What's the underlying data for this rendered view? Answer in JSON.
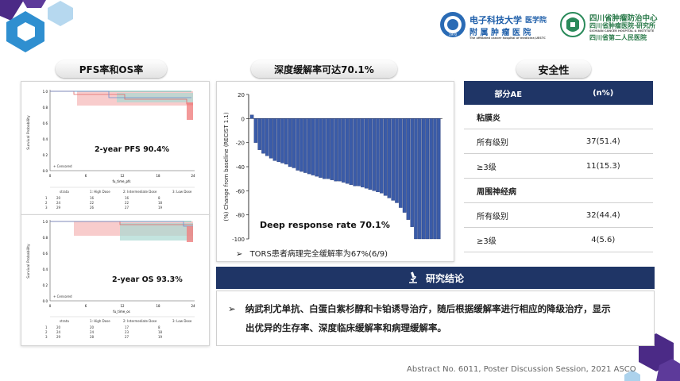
{
  "logos": {
    "uestc": {
      "line1": "电子科技大学",
      "suffix": "医学院",
      "line2": "附 属 肿 瘤 医 院",
      "subtitle": "The affiliated cancer hospital of medicine,UESTC",
      "seal_text": "1970"
    },
    "sichuan": {
      "line1": "四川省肿瘤医院·研究所",
      "line2": "四川省肿瘤防治中心",
      "line3": "四川省第二人民医院",
      "subtitle": "SICHUAN CANCER HOSPITAL & INSTITUTE"
    }
  },
  "headers": {
    "left": "PFS率和OS率",
    "middle": "深度缓解率可达70.1%",
    "right": "安全性"
  },
  "km_pfs": {
    "annotation": "2-year PFS 90.4%",
    "ylabel": "Survival Probability",
    "xlabel": "fu_time_pfs",
    "yticks": [
      "1.0",
      "0.8",
      "0.6",
      "0.4",
      "0.2",
      "0.0"
    ],
    "xticks": [
      "0",
      "6",
      "12",
      "18",
      "24"
    ],
    "censored": "+ Censored",
    "legend": [
      "strata",
      "1: High Dose",
      "2: Intermediate Dose",
      "3: Low Dose"
    ],
    "risk_rows": [
      [
        "1",
        "20",
        "16",
        "16",
        "8"
      ],
      [
        "2",
        "24",
        "22",
        "22",
        "18"
      ],
      [
        "3",
        "29",
        "26",
        "27",
        "19"
      ]
    ]
  },
  "km_os": {
    "annotation": "2-year OS 93.3%",
    "ylabel": "Survival Probability",
    "xlabel": "fu_time_os",
    "yticks": [
      "1.0",
      "0.8",
      "0.6",
      "0.4",
      "0.2",
      "0.0"
    ],
    "xticks": [
      "0",
      "6",
      "12",
      "18",
      "24"
    ],
    "censored": "+ Censored",
    "legend": [
      "strata",
      "1: High Dose",
      "2: Intermediate Dose",
      "3: Low Dose"
    ],
    "risk_rows": [
      [
        "1",
        "20",
        "20",
        "17",
        "8"
      ],
      [
        "2",
        "24",
        "24",
        "23",
        "18"
      ],
      [
        "3",
        "29",
        "28",
        "27",
        "19"
      ]
    ]
  },
  "chart_data": {
    "type": "bar",
    "title": "",
    "xlabel": "",
    "ylabel": "(%) Change from baseline (RECIST 1.1)",
    "ylim": [
      -100,
      20
    ],
    "yticks": [
      20,
      0,
      -20,
      -40,
      -60,
      -80,
      -100
    ],
    "annotation": "Deep response rate 70.1%",
    "bar_color": "#3a5ba8",
    "values": [
      3,
      -20,
      -26,
      -29,
      -31,
      -33,
      -35,
      -36,
      -37,
      -38,
      -40,
      -41,
      -43,
      -44,
      -45,
      -46,
      -47,
      -48,
      -49,
      -50,
      -50,
      -51,
      -52,
      -52,
      -53,
      -54,
      -55,
      -56,
      -56,
      -57,
      -58,
      -59,
      -60,
      -61,
      -62,
      -64,
      -66,
      -68,
      -70,
      -74,
      -78,
      -84,
      -90,
      -100,
      -100,
      -100,
      -100,
      -100,
      -100,
      -100
    ]
  },
  "tors_note": {
    "bullet": "➢",
    "text": "TORS患者病理完全缓解率为67%(6/9)"
  },
  "safety_table": {
    "headers": [
      "部分AE",
      "(n%)"
    ],
    "rows": [
      {
        "kind": "section",
        "label": "粘膜炎",
        "value": ""
      },
      {
        "kind": "row",
        "label": "所有级别",
        "value": "37(51.4)"
      },
      {
        "kind": "row",
        "label": "≥3级",
        "value": "11(15.3)"
      },
      {
        "kind": "section",
        "label": "周围神经病",
        "value": ""
      },
      {
        "kind": "row",
        "label": "所有级别",
        "value": "32(44.4)"
      },
      {
        "kind": "row",
        "label": "≥3级",
        "value": "4(5.6)"
      }
    ]
  },
  "conclusion": {
    "title": "研究结论",
    "bullet": "➢",
    "line1": "纳武利尤单抗、白蛋白紫杉醇和卡铂诱导治疗，随后根据缓解率进行相应的降级治疗，显示",
    "line2": "出优异的生存率、深度临床缓解率和病理缓解率。"
  },
  "footer": "Abstract No. 6011, Poster Discussion  Session, 2021 ASCO",
  "colors": {
    "navy": "#1f3566",
    "accent": "#3a5ba8",
    "purple": "#5b2d90"
  }
}
